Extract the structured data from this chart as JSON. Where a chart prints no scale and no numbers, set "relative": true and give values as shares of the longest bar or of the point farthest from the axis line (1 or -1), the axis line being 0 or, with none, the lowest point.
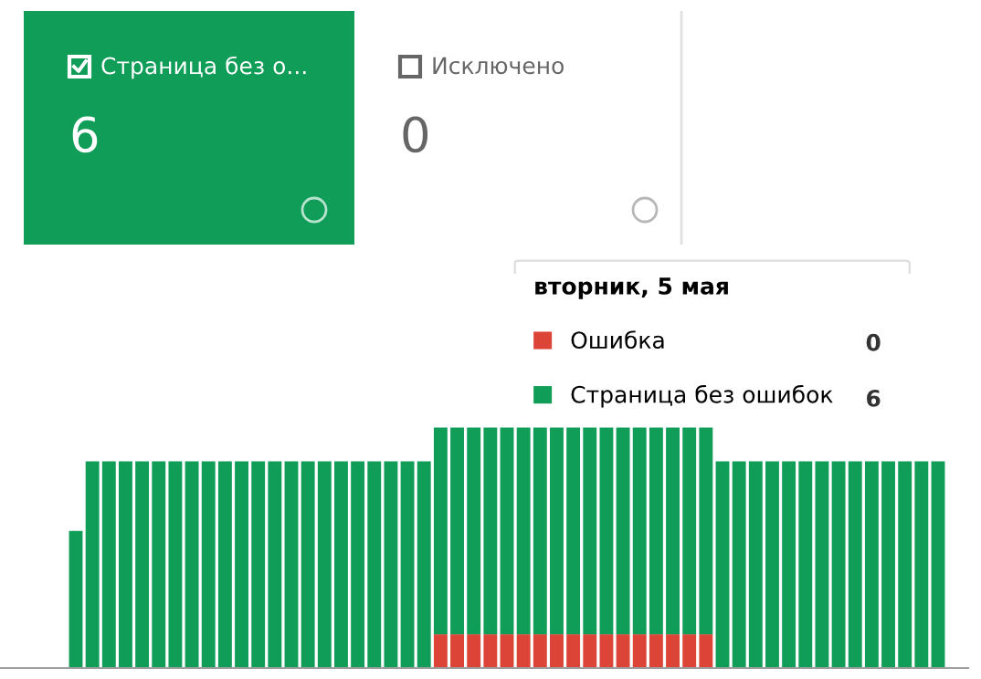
{
  "chart_data": [
    {
      "type": "other",
      "annotations": [
        "Страница без о...",
        "6",
        "Исключено",
        "0"
      ]
    },
    {
      "type": "bar",
      "stacked": true,
      "relative": true,
      "categories": [
        null,
        null,
        null,
        null,
        null,
        null,
        null,
        null,
        null,
        null,
        null,
        null,
        null,
        null,
        null,
        null,
        null,
        null,
        null,
        null,
        null,
        null,
        null,
        null,
        null,
        null,
        null,
        null,
        null,
        null,
        null,
        null,
        null,
        null,
        null,
        null,
        null,
        null,
        null,
        null,
        null,
        null,
        null,
        null,
        null,
        null,
        null,
        null,
        null,
        null,
        null,
        null,
        null
      ],
      "series": [
        {
          "name": "Ошибка",
          "color": "#db4437",
          "values": [
            0,
            0,
            0,
            0,
            0,
            0,
            0,
            0,
            0,
            0,
            0,
            0,
            0,
            0,
            0,
            0,
            0,
            0,
            0,
            0,
            0,
            0,
            0.14,
            0.14,
            0.14,
            0.14,
            0.14,
            0.14,
            0.14,
            0.14,
            0.14,
            0.14,
            0.14,
            0.14,
            0.14,
            0.14,
            0.14,
            0.14,
            0.14,
            0,
            0,
            0,
            0,
            0,
            0,
            0,
            0,
            0,
            0,
            0,
            0,
            0,
            0
          ]
        },
        {
          "name": "Страница без ошибок",
          "color": "#0f9d58",
          "values": [
            0.57,
            0.86,
            0.86,
            0.86,
            0.86,
            0.86,
            0.86,
            0.86,
            0.86,
            0.86,
            0.86,
            0.86,
            0.86,
            0.86,
            0.86,
            0.86,
            0.86,
            0.86,
            0.86,
            0.86,
            0.86,
            0.86,
            0.86,
            0.86,
            0.86,
            0.86,
            0.86,
            0.86,
            0.86,
            0.86,
            0.86,
            0.86,
            0.86,
            0.86,
            0.86,
            0.86,
            0.86,
            0.86,
            0.86,
            0.86,
            0.86,
            0.86,
            0.86,
            0.86,
            0.86,
            0.86,
            0.86,
            0.86,
            0.86,
            0.86,
            0.86,
            0.86,
            0.86
          ]
        }
      ],
      "legend_title": "вторник, 5 мая",
      "legend": "top right",
      "annotations": [
        "0",
        "6"
      ]
    }
  ]
}
